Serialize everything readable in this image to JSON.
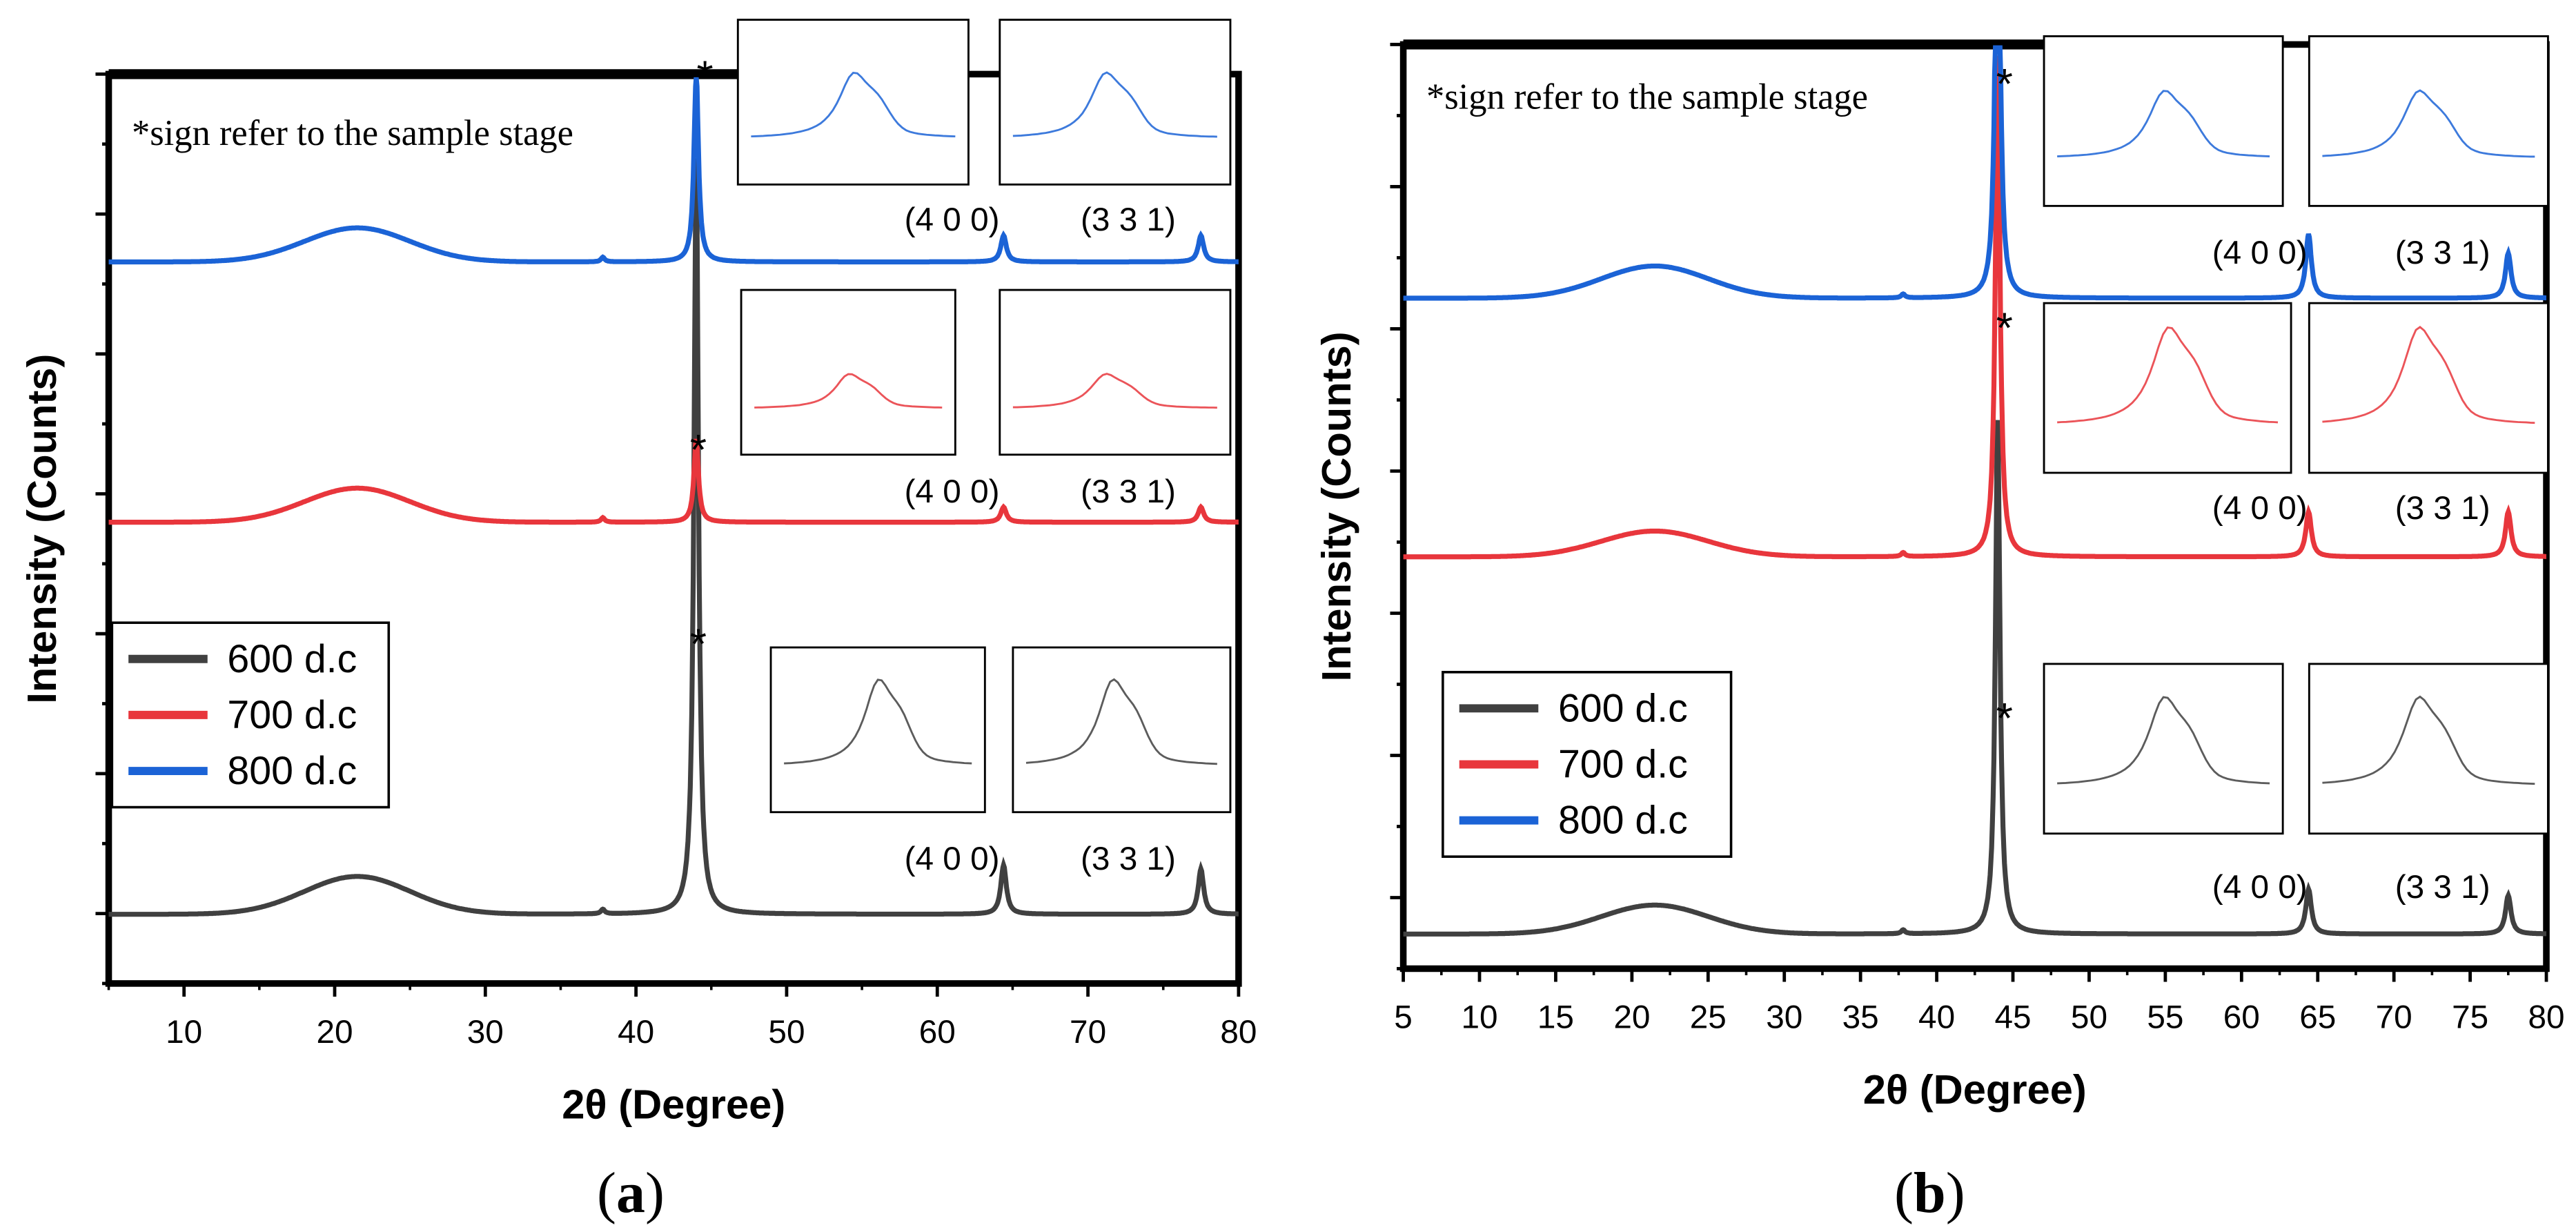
{
  "panels": [
    {
      "label_open": "(",
      "label_letter": "a",
      "label_close": ")",
      "note": "*sign refer to the sample stage",
      "xlabel": "2θ (Degree)",
      "ylabel": "Intensity (Counts)",
      "xlim": [
        5,
        80
      ],
      "xticks": [
        10,
        20,
        30,
        40,
        50,
        60,
        70,
        80
      ],
      "star": "*",
      "peak_labels": [
        "(4 0 0)",
        "(3 3 1)"
      ],
      "legend": [
        "600 d.c",
        "700 d.c",
        "800 d.c"
      ],
      "series": [
        {
          "name": "600 d.c",
          "color": "#404040",
          "baseline": 0.0,
          "hump": 0.05,
          "p44": 1.0,
          "p64": 0.065,
          "p77": 0.06
        },
        {
          "name": "700 d.c",
          "color": "#e8363c",
          "baseline": 0.0,
          "hump": 0.045,
          "p44": 0.11,
          "p64": 0.02,
          "p77": 0.02
        },
        {
          "name": "800 d.c",
          "color": "#1b63d6",
          "baseline": 0.0,
          "hump": 0.045,
          "p44": 0.25,
          "p64": 0.035,
          "p77": 0.035
        }
      ]
    },
    {
      "label_open": "(",
      "label_letter": "b",
      "label_close": ")",
      "note": "*sign refer to the sample stage",
      "xlabel": "2θ (Degree)",
      "ylabel": "Intensity (Counts)",
      "xlim": [
        5,
        80
      ],
      "xticks": [
        5,
        10,
        15,
        20,
        25,
        30,
        35,
        40,
        45,
        50,
        55,
        60,
        65,
        70,
        75,
        80
      ],
      "star": "*",
      "peak_labels": [
        "(4 0 0)",
        "(3 3 1)"
      ],
      "legend": [
        "600 d.c",
        "700 d.c",
        "800 d.c"
      ],
      "series": [
        {
          "name": "600 d.c",
          "color": "#404040",
          "baseline": 0.0,
          "hump": 0.045,
          "p44": 0.8,
          "p64": 0.07,
          "p77": 0.06
        },
        {
          "name": "700 d.c",
          "color": "#e8363c",
          "baseline": 0.0,
          "hump": 0.04,
          "p44": 0.78,
          "p64": 0.07,
          "p77": 0.07
        },
        {
          "name": "800 d.c",
          "color": "#1b63d6",
          "baseline": 0.0,
          "hump": 0.05,
          "p44": 0.78,
          "p64": 0.1,
          "p77": 0.07
        }
      ]
    }
  ],
  "chart_data": [
    {
      "type": "line",
      "title": "(a)",
      "xlabel": "2θ (Degree)",
      "ylabel": "Intensity (Counts)",
      "xlim": [
        5,
        80
      ],
      "annotations": [
        "*sign refer to the sample stage",
        "(4 0 0)",
        "(3 3 1)",
        "*"
      ],
      "series": [
        {
          "name": "600 d.c",
          "peaks_2theta": [
            21.5,
            44.0,
            64.4,
            77.5
          ],
          "relative_heights": [
            0.05,
            1.0,
            0.065,
            0.06
          ]
        },
        {
          "name": "700 d.c",
          "peaks_2theta": [
            21.5,
            44.0,
            64.4,
            77.5
          ],
          "relative_heights": [
            0.045,
            0.11,
            0.02,
            0.02
          ]
        },
        {
          "name": "800 d.c",
          "peaks_2theta": [
            21.5,
            44.0,
            64.4,
            77.5
          ],
          "relative_heights": [
            0.045,
            0.25,
            0.035,
            0.035
          ]
        }
      ],
      "legend": "lower-left"
    },
    {
      "type": "line",
      "title": "(b)",
      "xlabel": "2θ (Degree)",
      "ylabel": "Intensity (Counts)",
      "xlim": [
        5,
        80
      ],
      "annotations": [
        "*sign refer to the sample stage",
        "(4 0 0)",
        "(3 3 1)",
        "*"
      ],
      "series": [
        {
          "name": "600 d.c",
          "peaks_2theta": [
            21.5,
            44.0,
            64.4,
            77.5
          ],
          "relative_heights": [
            0.045,
            0.8,
            0.07,
            0.06
          ]
        },
        {
          "name": "700 d.c",
          "peaks_2theta": [
            21.5,
            44.0,
            64.4,
            77.5
          ],
          "relative_heights": [
            0.04,
            0.78,
            0.07,
            0.07
          ]
        },
        {
          "name": "800 d.c",
          "peaks_2theta": [
            21.5,
            44.0,
            64.4,
            77.5
          ],
          "relative_heights": [
            0.05,
            0.78,
            0.1,
            0.07
          ]
        }
      ],
      "legend": "lower-left"
    }
  ]
}
